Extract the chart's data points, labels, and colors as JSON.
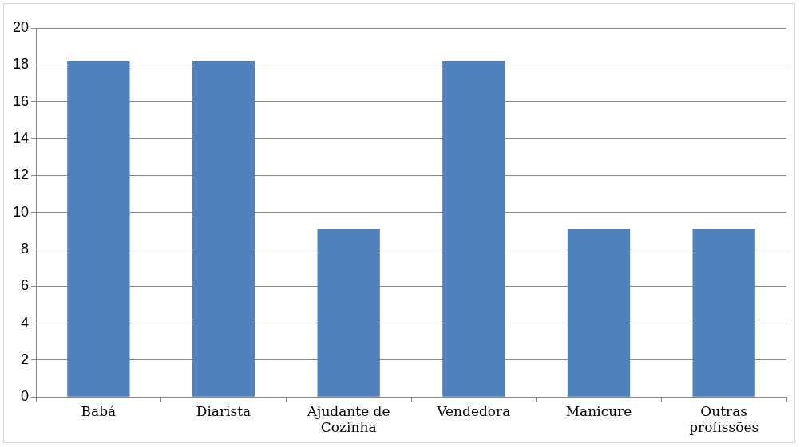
{
  "chart_data": {
    "type": "bar",
    "categories": [
      "Babá",
      "Diarista",
      "Ajudante de Cozinha",
      "Vendedora",
      "Manicure",
      "Outras profissões"
    ],
    "values": [
      18.2,
      18.2,
      9.1,
      18.2,
      9.1,
      9.1
    ],
    "color": "#4f81bd",
    "ylim": [
      0,
      20
    ],
    "yticks": [
      0,
      2,
      4,
      6,
      8,
      10,
      12,
      14,
      16,
      18,
      20
    ],
    "grid": "y",
    "legend": false
  }
}
